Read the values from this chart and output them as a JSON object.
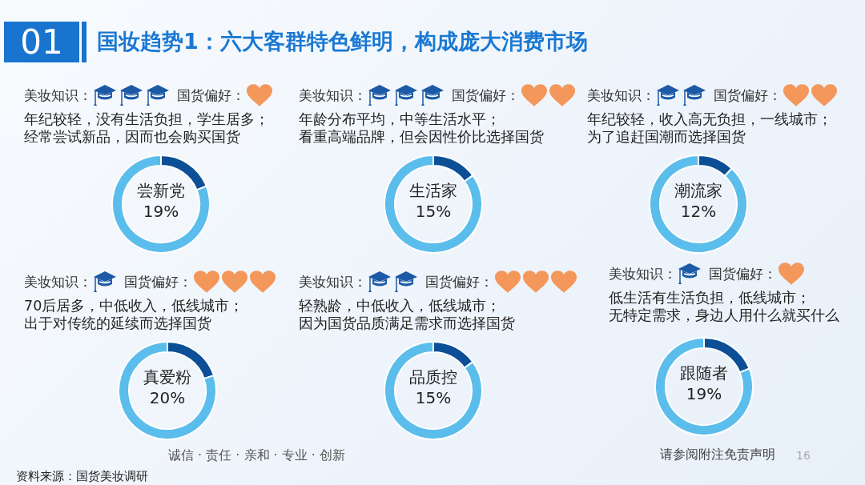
{
  "chart_data": [
    {
      "type": "other",
      "title": "国妆趋势1：六大客群特色鲜明，构成庞大消费市场",
      "annotations": [
        "01"
      ]
    },
    {
      "type": "donut",
      "categories": [
        "尝新党",
        null
      ],
      "values": [
        19,
        81
      ],
      "colors": [
        "#0c4f97",
        "#5bbdeb"
      ],
      "value_labels": [
        "19%",
        null
      ],
      "annotations": [
        "美妆知识：",
        "国货偏好：",
        "年纪较轻，没有生活负担，学生居多；",
        "经常尝试新品，因而也会购买国货"
      ]
    },
    {
      "type": "donut",
      "categories": [
        "生活家",
        null
      ],
      "values": [
        15,
        85
      ],
      "colors": [
        "#0c4f97",
        "#5bbdeb"
      ],
      "value_labels": [
        "15%",
        null
      ],
      "annotations": [
        "美妆知识：",
        "国货偏好：",
        "年龄分布平均，中等生活水平；",
        "看重高端品牌，但会因性价比选择国货"
      ]
    },
    {
      "type": "donut",
      "categories": [
        "潮流家",
        null
      ],
      "values": [
        12,
        88
      ],
      "colors": [
        "#0c4f97",
        "#5bbdeb"
      ],
      "value_labels": [
        "12%",
        null
      ],
      "annotations": [
        "美妆知识：",
        "国货偏好：",
        "年纪较轻，收入高无负担，一线城市；",
        "为了追赶国潮而选择国货"
      ]
    },
    {
      "type": "donut",
      "categories": [
        "真爱粉",
        null
      ],
      "values": [
        20,
        80
      ],
      "colors": [
        "#0c4f97",
        "#5bbdeb"
      ],
      "value_labels": [
        "20%",
        null
      ],
      "annotations": [
        "美妆知识：",
        "国货偏好：",
        "70后居多，中低收入，低线城市；",
        "出于对传统的延续而选择国货"
      ]
    },
    {
      "type": "donut",
      "categories": [
        "品质控",
        null
      ],
      "values": [
        15,
        85
      ],
      "colors": [
        "#0c4f97",
        "#5bbdeb"
      ],
      "value_labels": [
        "15%",
        null
      ],
      "annotations": [
        "美妆知识：",
        "国货偏好：",
        "轻熟龄，中低收入，低线城市；",
        "因为国货品质满足需求而选择国货"
      ]
    },
    {
      "type": "donut",
      "categories": [
        "跟随者",
        null
      ],
      "values": [
        19,
        81
      ],
      "colors": [
        "#0c4f97",
        "#5bbdeb"
      ],
      "value_labels": [
        "19%",
        null
      ],
      "annotations": [
        "美妆知识：",
        "国货偏好：",
        "低生活有生活负担，低线城市；",
        "无特定需求，身边人用什么就买什么"
      ]
    },
    {
      "type": "other",
      "annotations": [
        "诚信 · 责任 · 亲和 · 专业 · 创新",
        "资料来源：国货美妆调研",
        "请参阅附注免责声明",
        "16"
      ]
    }
  ]
}
